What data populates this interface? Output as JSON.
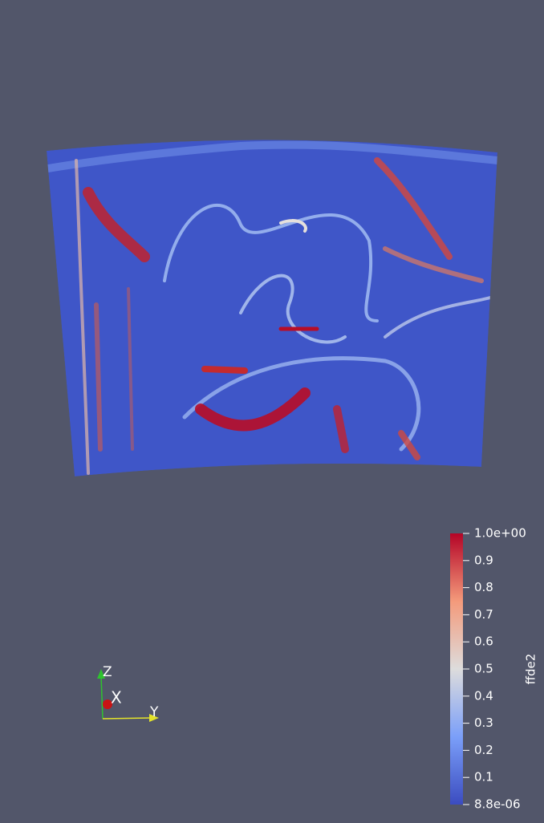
{
  "colorbar": {
    "title": "ffde2",
    "max_label": "1.0e+00",
    "min_label": "8.8e-06",
    "ticks": [
      "0.9",
      "0.8",
      "0.7",
      "0.6",
      "0.5",
      "0.4",
      "0.3",
      "0.2",
      "0.1"
    ]
  },
  "axes": {
    "z": "Z",
    "x": "X",
    "y": "Y"
  }
}
